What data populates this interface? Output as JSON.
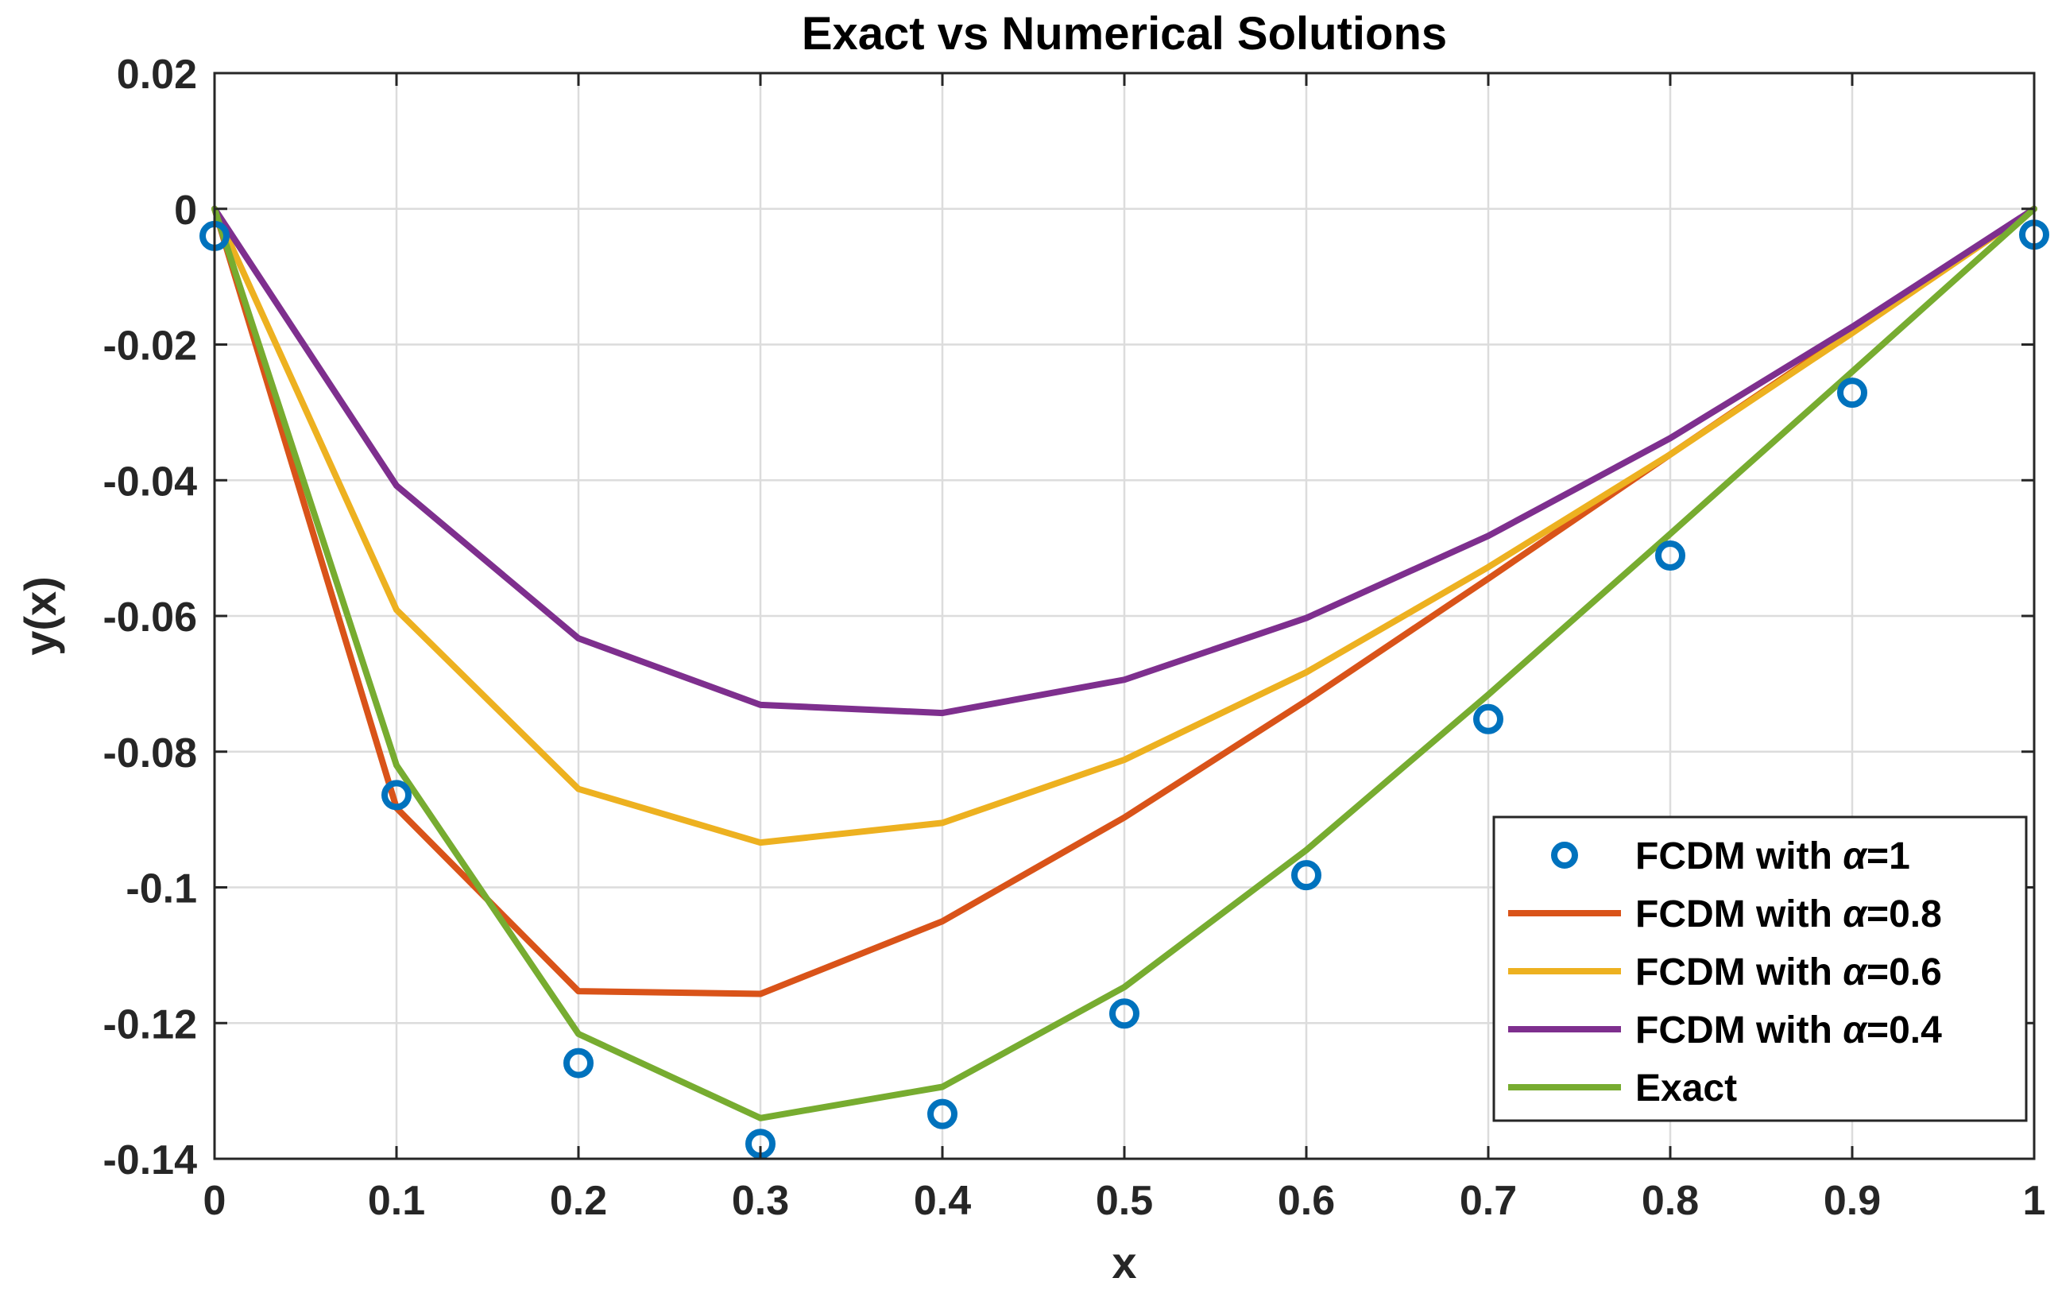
{
  "chart_data": {
    "type": "line",
    "title": "Exact vs Numerical Solutions",
    "xlabel": "x",
    "ylabel": "y(x)",
    "xlim": [
      0,
      1
    ],
    "ylim": [
      -0.14,
      0.02
    ],
    "grid": true,
    "x_ticks": [
      0,
      0.1,
      0.2,
      0.3,
      0.4,
      0.5,
      0.6,
      0.7,
      0.8,
      0.9,
      1
    ],
    "x_tick_labels": [
      "0",
      "0.1",
      "0.2",
      "0.3",
      "0.4",
      "0.5",
      "0.6",
      "0.7",
      "0.8",
      "0.9",
      "1"
    ],
    "y_ticks": [
      0.02,
      0,
      -0.02,
      -0.04,
      -0.06,
      -0.08,
      -0.1,
      -0.12,
      -0.14
    ],
    "y_tick_labels": [
      "0.02",
      "0",
      "-0.02",
      "-0.04",
      "-0.06",
      "-0.08",
      "-0.1",
      "-0.12",
      "-0.14"
    ],
    "x": [
      0,
      0.1,
      0.2,
      0.3,
      0.4,
      0.5,
      0.6,
      0.7,
      0.8,
      0.9,
      1
    ],
    "legend_position": "bottom-right",
    "series": [
      {
        "name": "FCDM with α=1",
        "legend_prefix": "FCDM with ",
        "legend_symbol": "α",
        "legend_suffix": "=1",
        "style": "markers",
        "color": "#0072BD",
        "values": [
          -0.004,
          -0.0864,
          -0.1259,
          -0.1378,
          -0.1334,
          -0.1186,
          -0.0982,
          -0.0752,
          -0.0511,
          -0.0271,
          -0.0038
        ]
      },
      {
        "name": "FCDM with α=0.8",
        "legend_prefix": "FCDM with ",
        "legend_symbol": "α",
        "legend_suffix": "=0.8",
        "style": "line",
        "color": "#D95319",
        "values": [
          0,
          -0.0883,
          -0.1153,
          -0.1157,
          -0.105,
          -0.0897,
          -0.0725,
          -0.0545,
          -0.0362,
          -0.018,
          0
        ]
      },
      {
        "name": "FCDM with α=0.6",
        "legend_prefix": "FCDM with ",
        "legend_symbol": "α",
        "legend_suffix": "=0.6",
        "style": "line",
        "color": "#EDB120",
        "values": [
          0,
          -0.0591,
          -0.0855,
          -0.0934,
          -0.0905,
          -0.0812,
          -0.0683,
          -0.0528,
          -0.0362,
          -0.0183,
          0
        ]
      },
      {
        "name": "FCDM with α=0.4",
        "legend_prefix": "FCDM with ",
        "legend_symbol": "α",
        "legend_suffix": "=0.4",
        "style": "line",
        "color": "#7E2F8E",
        "values": [
          0,
          -0.0408,
          -0.0633,
          -0.0731,
          -0.0743,
          -0.0694,
          -0.0603,
          -0.0482,
          -0.0338,
          -0.0174,
          0
        ]
      },
      {
        "name": "Exact",
        "legend_prefix": "Exact",
        "legend_symbol": "",
        "legend_suffix": "",
        "style": "line",
        "color": "#77AC30",
        "values": [
          0,
          -0.082,
          -0.1216,
          -0.134,
          -0.1294,
          -0.1147,
          -0.0945,
          -0.0716,
          -0.0479,
          -0.024,
          0
        ]
      }
    ]
  }
}
